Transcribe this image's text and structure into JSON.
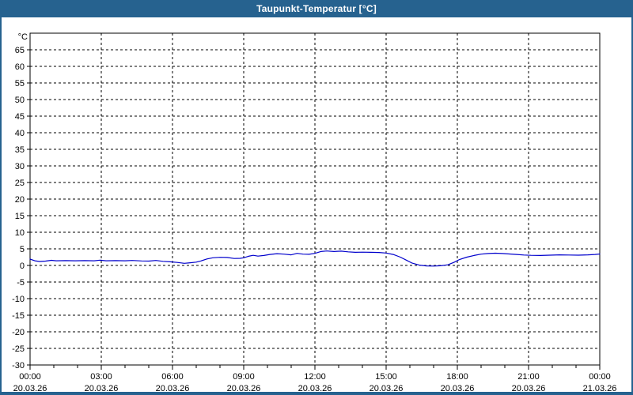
{
  "window": {
    "title": "Taupunkt-Temperatur [°C]",
    "title_bar_color": "#26628F",
    "border_color": "#26628F",
    "content_background": "#ffffff"
  },
  "chart_data": {
    "type": "line",
    "title": "Taupunkt-Temperatur [°C]",
    "ylabel": "°C",
    "ylim": [
      -30,
      70
    ],
    "yticks": {
      "min": -30,
      "max": 65,
      "step": 5
    },
    "x_hours_range": [
      0,
      24
    ],
    "x_major_step_hours": 3,
    "x_minor_step_hours": 1,
    "xtick_times": [
      "00:00",
      "03:00",
      "06:00",
      "09:00",
      "12:00",
      "15:00",
      "18:00",
      "21:00",
      "00:00"
    ],
    "xtick_dates": [
      "20.03.26",
      "20.03.26",
      "20.03.26",
      "20.03.26",
      "20.03.26",
      "20.03.26",
      "20.03.26",
      "20.03.26",
      "21.03.26"
    ],
    "grid": "dashed",
    "legend": "none",
    "colors": {
      "line": "#0000CC",
      "grid": "#000000",
      "axis": "#000000",
      "plot_background": "#ffffff",
      "text": "#000000"
    },
    "series": [
      {
        "name": "Taupunkt-Temperatur",
        "unit": "°C",
        "points": [
          [
            0.0,
            1.9
          ],
          [
            0.2,
            1.4
          ],
          [
            0.4,
            1.2
          ],
          [
            0.65,
            1.3
          ],
          [
            0.9,
            1.55
          ],
          [
            1.1,
            1.4
          ],
          [
            1.5,
            1.45
          ],
          [
            1.9,
            1.4
          ],
          [
            2.3,
            1.45
          ],
          [
            2.7,
            1.4
          ],
          [
            2.95,
            1.6
          ],
          [
            3.2,
            1.4
          ],
          [
            3.6,
            1.45
          ],
          [
            4.0,
            1.4
          ],
          [
            4.3,
            1.5
          ],
          [
            4.7,
            1.35
          ],
          [
            5.0,
            1.3
          ],
          [
            5.3,
            1.5
          ],
          [
            5.6,
            1.25
          ],
          [
            5.9,
            1.1
          ],
          [
            6.2,
            0.9
          ],
          [
            6.5,
            0.65
          ],
          [
            6.75,
            0.8
          ],
          [
            7.0,
            1.0
          ],
          [
            7.2,
            1.35
          ],
          [
            7.45,
            1.95
          ],
          [
            7.7,
            2.3
          ],
          [
            8.0,
            2.45
          ],
          [
            8.3,
            2.4
          ],
          [
            8.6,
            2.1
          ],
          [
            8.85,
            2.15
          ],
          [
            9.0,
            2.3
          ],
          [
            9.2,
            2.75
          ],
          [
            9.4,
            3.05
          ],
          [
            9.6,
            2.8
          ],
          [
            9.85,
            3.0
          ],
          [
            10.1,
            3.3
          ],
          [
            10.4,
            3.55
          ],
          [
            10.7,
            3.4
          ],
          [
            11.0,
            3.2
          ],
          [
            11.25,
            3.65
          ],
          [
            11.5,
            3.4
          ],
          [
            11.75,
            3.35
          ],
          [
            12.0,
            3.65
          ],
          [
            12.25,
            4.2
          ],
          [
            12.5,
            4.35
          ],
          [
            12.8,
            4.2
          ],
          [
            13.1,
            4.3
          ],
          [
            13.4,
            4.1
          ],
          [
            13.7,
            3.95
          ],
          [
            14.0,
            4.0
          ],
          [
            14.35,
            3.95
          ],
          [
            14.7,
            3.9
          ],
          [
            15.0,
            3.75
          ],
          [
            15.3,
            3.3
          ],
          [
            15.6,
            2.5
          ],
          [
            15.85,
            1.6
          ],
          [
            16.1,
            0.7
          ],
          [
            16.4,
            0.1
          ],
          [
            16.7,
            -0.15
          ],
          [
            17.0,
            -0.2
          ],
          [
            17.3,
            -0.1
          ],
          [
            17.6,
            0.2
          ],
          [
            17.85,
            0.9
          ],
          [
            18.1,
            1.8
          ],
          [
            18.4,
            2.5
          ],
          [
            18.7,
            3.0
          ],
          [
            19.0,
            3.4
          ],
          [
            19.3,
            3.6
          ],
          [
            19.6,
            3.7
          ],
          [
            19.9,
            3.6
          ],
          [
            20.2,
            3.45
          ],
          [
            20.5,
            3.3
          ],
          [
            20.8,
            3.15
          ],
          [
            21.1,
            3.05
          ],
          [
            21.5,
            3.0
          ],
          [
            21.9,
            3.1
          ],
          [
            22.3,
            3.2
          ],
          [
            22.7,
            3.15
          ],
          [
            23.1,
            3.1
          ],
          [
            23.5,
            3.2
          ],
          [
            23.8,
            3.3
          ],
          [
            24.0,
            3.45
          ]
        ]
      }
    ]
  }
}
